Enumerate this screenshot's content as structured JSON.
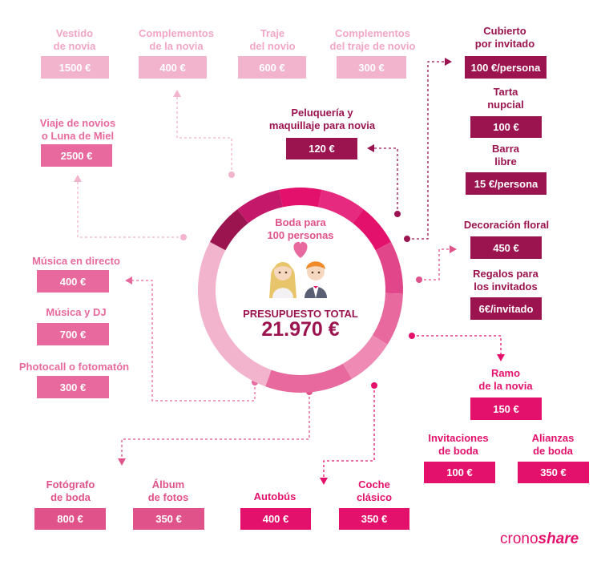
{
  "center": {
    "title": "Boda para\n100 personas",
    "budget_label": "PRESUPUESTO TOTAL",
    "budget_value": "21.970 €"
  },
  "items": [
    {
      "label": "Vestido\nde novia",
      "value": "1500 €"
    },
    {
      "label": "Complementos\nde la novia",
      "value": "400 €"
    },
    {
      "label": "Traje\ndel novio",
      "value": "600 €"
    },
    {
      "label": "Complementos\ndel traje de novio",
      "value": "300 €"
    },
    {
      "label": "Viaje de novios\no Luna de Miel",
      "value": "2500 €"
    },
    {
      "label": "Peluquería y\nmaquillaje para novia",
      "value": "120 €"
    },
    {
      "label": "Cubierto\npor invitado",
      "value": "100 €/persona"
    },
    {
      "label": "Tarta\nnupcial",
      "value": "100 €"
    },
    {
      "label": "Barra\nlibre",
      "value": "15 €/persona"
    },
    {
      "label": "Decoración floral",
      "value": "450 €"
    },
    {
      "label": "Regalos para\nlos invitados",
      "value": "6€/invitado"
    },
    {
      "label": "Música en directo",
      "value": "400 €"
    },
    {
      "label": "Música y DJ",
      "value": "700 €"
    },
    {
      "label": "Photocall o fotomatón",
      "value": "300 €"
    },
    {
      "label": "Ramo\nde la novia",
      "value": "150 €"
    },
    {
      "label": "Invitaciones\nde boda",
      "value": "100 €"
    },
    {
      "label": "Alianzas\nde boda",
      "value": "350 €"
    },
    {
      "label": "Fotógrafo\nde boda",
      "value": "800 €"
    },
    {
      "label": "Álbum\nde fotos",
      "value": "350 €"
    },
    {
      "label": "Autobús",
      "value": "400 €"
    },
    {
      "label": "Coche\nclásico",
      "value": "350 €"
    }
  ],
  "brand": {
    "part1": "crono",
    "part2": "share"
  },
  "colors": {
    "light": "#f2b3cd",
    "medium": "#e8699d",
    "strong": "#e3116c",
    "dark": "#9b1450"
  }
}
